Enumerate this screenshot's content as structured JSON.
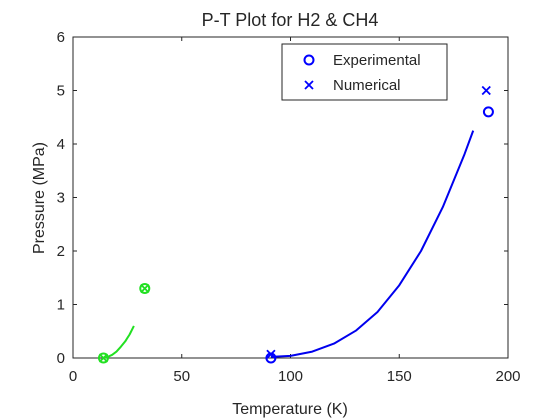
{
  "chart_data": {
    "type": "line",
    "title": "P-T Plot for H2 & CH4",
    "xlabel": "Temperature (K)",
    "ylabel": "Pressure (MPa)",
    "xlim": [
      0,
      200
    ],
    "ylim": [
      0,
      6
    ],
    "xticks": [
      0,
      50,
      100,
      150,
      200
    ],
    "yticks": [
      0,
      1,
      2,
      3,
      4,
      5,
      6
    ],
    "grid": false,
    "legend_position": "top-right",
    "legend": [
      {
        "name": "Experimental",
        "marker": "circle",
        "color": "#0000ff"
      },
      {
        "name": "Numerical",
        "marker": "cross",
        "color": "#0000ff"
      }
    ],
    "series": [
      {
        "kind": "line",
        "color": "#22e022",
        "x": [
          14,
          16,
          18,
          20,
          22,
          24,
          26,
          28
        ],
        "y": [
          0.0,
          0.02,
          0.06,
          0.12,
          0.21,
          0.31,
          0.44,
          0.6
        ]
      },
      {
        "kind": "line",
        "color": "#0000ee",
        "x": [
          91,
          100,
          110,
          120,
          130,
          140,
          150,
          160,
          170,
          180,
          184
        ],
        "y": [
          0.02,
          0.04,
          0.12,
          0.27,
          0.51,
          0.86,
          1.36,
          2.0,
          2.82,
          3.81,
          4.25
        ]
      },
      {
        "kind": "marker",
        "marker": "circle",
        "color": "#22e022",
        "x": [
          14,
          33
        ],
        "y": [
          0.0,
          1.3
        ]
      },
      {
        "kind": "marker",
        "marker": "cross",
        "color": "#22e022",
        "x": [
          14,
          33
        ],
        "y": [
          0.0,
          1.3
        ]
      },
      {
        "kind": "marker",
        "marker": "circle",
        "color": "#0000ff",
        "x": [
          91,
          191
        ],
        "y": [
          0.0,
          4.6
        ]
      },
      {
        "kind": "marker",
        "marker": "cross",
        "color": "#0000ff",
        "x": [
          91,
          190
        ],
        "y": [
          0.07,
          5.0
        ]
      }
    ]
  }
}
